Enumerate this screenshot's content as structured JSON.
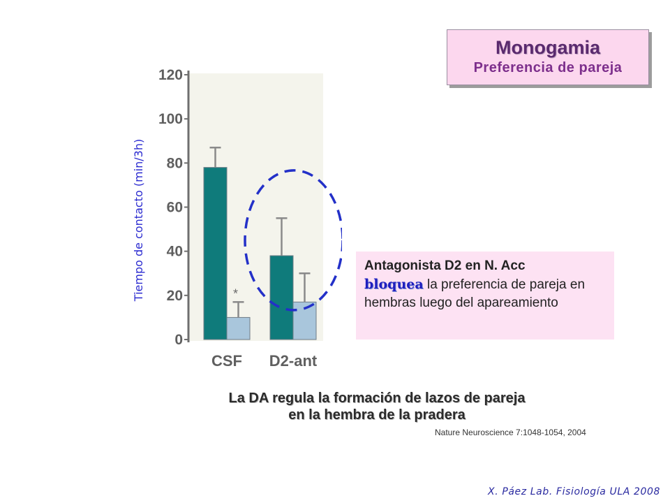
{
  "title": {
    "main": "Monogamia",
    "sub": "Preferencia de pareja"
  },
  "chart_data": {
    "type": "bar",
    "ylabel": "Tiempo de contacto (min/3h)",
    "ylim": [
      0,
      120
    ],
    "yticks": [
      0,
      20,
      40,
      60,
      80,
      100,
      120
    ],
    "categories": [
      "CSF",
      "D2-ant"
    ],
    "series": [
      {
        "values": [
          78,
          38
        ],
        "errors": [
          9,
          17
        ],
        "color": "#0f7b7b"
      },
      {
        "values": [
          10,
          17
        ],
        "errors": [
          7,
          13
        ],
        "color": "#a9c6dc"
      }
    ],
    "significance_marks": [
      "*",
      ""
    ],
    "grid": false,
    "highlight": {
      "category": "D2-ant",
      "style": "dashed-ellipse",
      "color": "#2330c8"
    }
  },
  "note": {
    "line1": "Antagonista D2 en N. Acc",
    "bold": "bloquea",
    "rest": " la preferencia de pareja en hembras luego del apareamiento"
  },
  "caption": {
    "line1": "La DA regula la formación de lazos de pareja",
    "line2": "en la hembra de la pradera"
  },
  "reference": "Nature Neuroscience 7:1048-1054,  2004",
  "credit": "X. Páez  Lab. Fisiología ULA 2008"
}
